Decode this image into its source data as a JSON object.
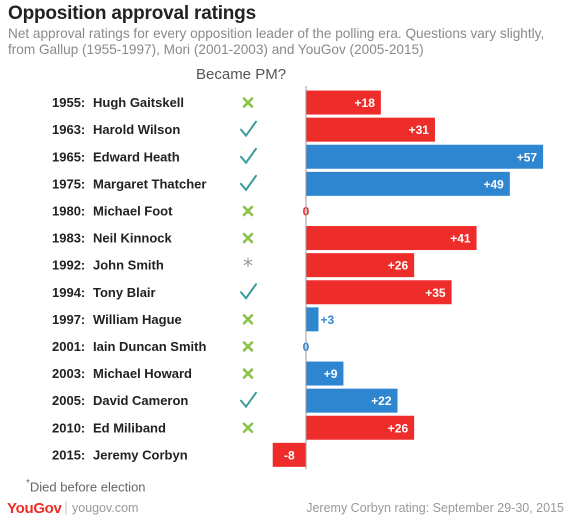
{
  "title": "Opposition approval ratings",
  "subtitle": "Net approval ratings for every opposition leader of the polling era. Questions vary slightly, from Gallup (1955-1997), Mori (2001-2003) and YouGov (2005-2015)",
  "column_header": "Became PM?",
  "footnote": {
    "marker": "*",
    "text": "Died before election"
  },
  "brand": {
    "logo": "YouGov",
    "separator": "|",
    "site": "yougov.com"
  },
  "source_note": "Jeremy Corbyn rating: September 29-30, 2015",
  "colors": {
    "red": "#ee2d2a",
    "blue": "#2f86d0",
    "check": "#3d9a9a",
    "cross": "#8bc34a",
    "star": "#9a9a9a",
    "axis": "#9a9a9a"
  },
  "chart_data": {
    "type": "bar",
    "orientation": "horizontal",
    "xlim": [
      -15,
      60
    ],
    "rows": [
      {
        "year": "1955:",
        "name": "Hugh Gaitskell",
        "became_pm": "cross",
        "value": 18,
        "label": "+18",
        "color": "red"
      },
      {
        "year": "1963:",
        "name": "Harold Wilson",
        "became_pm": "check",
        "value": 31,
        "label": "+31",
        "color": "red"
      },
      {
        "year": "1965:",
        "name": "Edward Heath",
        "became_pm": "check",
        "value": 57,
        "label": "+57",
        "color": "blue"
      },
      {
        "year": "1975:",
        "name": "Margaret Thatcher",
        "became_pm": "check",
        "value": 49,
        "label": "+49",
        "color": "blue"
      },
      {
        "year": "1980:",
        "name": "Michael Foot",
        "became_pm": "cross",
        "value": 0,
        "label": "0",
        "color": "red"
      },
      {
        "year": "1983:",
        "name": "Neil Kinnock",
        "became_pm": "cross",
        "value": 41,
        "label": "+41",
        "color": "red"
      },
      {
        "year": "1992:",
        "name": "John Smith",
        "became_pm": "star",
        "value": 26,
        "label": "+26",
        "color": "red"
      },
      {
        "year": "1994:",
        "name": "Tony Blair",
        "became_pm": "check",
        "value": 35,
        "label": "+35",
        "color": "red"
      },
      {
        "year": "1997:",
        "name": "William Hague",
        "became_pm": "cross",
        "value": 3,
        "label": "+3",
        "color": "blue"
      },
      {
        "year": "2001:",
        "name": "Iain Duncan Smith",
        "became_pm": "cross",
        "value": 0,
        "label": "0",
        "color": "blue"
      },
      {
        "year": "2003:",
        "name": "Michael Howard",
        "became_pm": "cross",
        "value": 9,
        "label": "+9",
        "color": "blue"
      },
      {
        "year": "2005:",
        "name": "David Cameron",
        "became_pm": "check",
        "value": 22,
        "label": "+22",
        "color": "blue"
      },
      {
        "year": "2010:",
        "name": "Ed Miliband",
        "became_pm": "cross",
        "value": 26,
        "label": "+26",
        "color": "red"
      },
      {
        "year": "2015:",
        "name": "Jeremy Corbyn",
        "became_pm": "none",
        "value": -8,
        "label": "-8",
        "color": "red"
      }
    ]
  }
}
